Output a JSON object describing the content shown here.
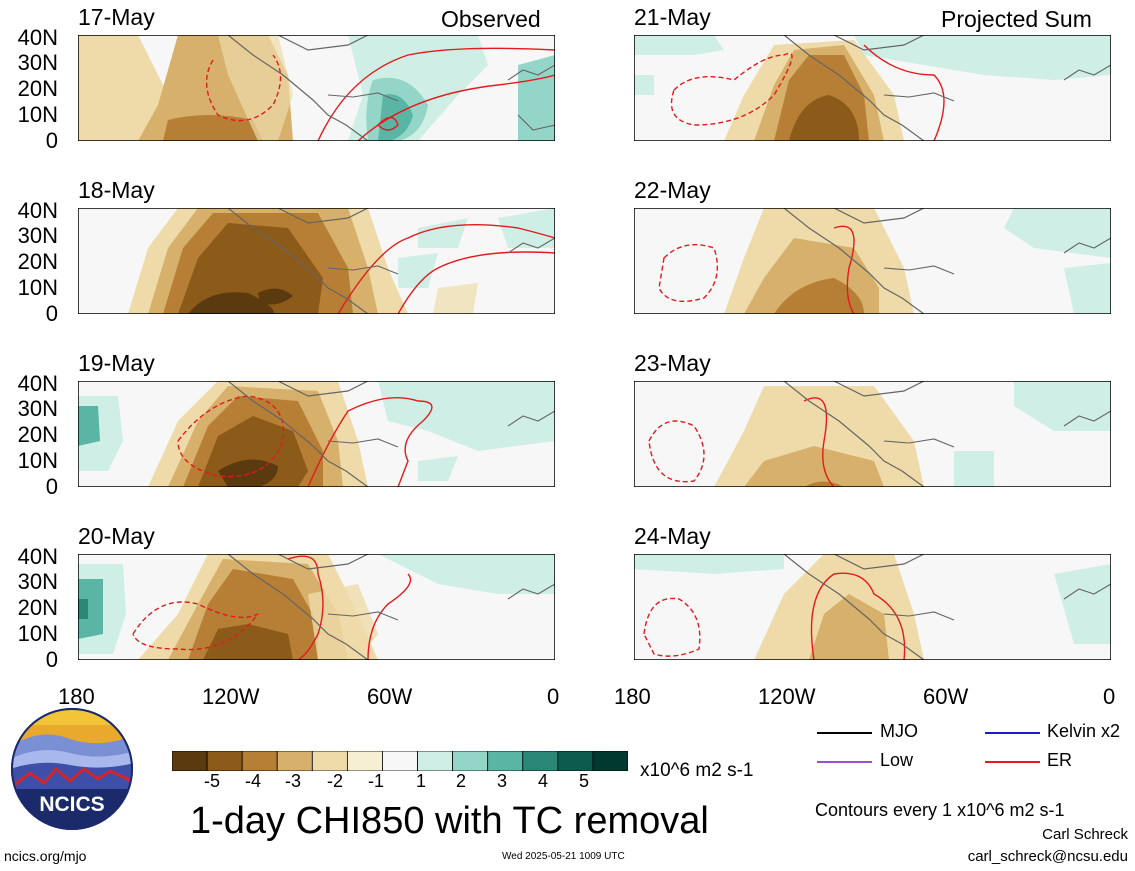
{
  "panels": [
    {
      "date": "17-May",
      "tag": "Observed"
    },
    {
      "date": "18-May",
      "tag": ""
    },
    {
      "date": "19-May",
      "tag": ""
    },
    {
      "date": "20-May",
      "tag": ""
    },
    {
      "date": "21-May",
      "tag": "Projected Sum"
    },
    {
      "date": "22-May",
      "tag": ""
    },
    {
      "date": "23-May",
      "tag": ""
    },
    {
      "date": "24-May",
      "tag": ""
    }
  ],
  "lat_labels": [
    "40N",
    "30N",
    "20N",
    "10N",
    "0"
  ],
  "lon_labels": [
    "180",
    "120W",
    "60W",
    "0"
  ],
  "colorbar": {
    "ticks": [
      "-5",
      "-4",
      "-3",
      "-2",
      "-1",
      "1",
      "2",
      "3",
      "4",
      "5"
    ],
    "colors": [
      "#5b3a10",
      "#8c5a19",
      "#b67f35",
      "#d7b06b",
      "#eedba9",
      "#f6efd4",
      "#f7f7f7",
      "#cfeee6",
      "#93d6c8",
      "#5ab5a4",
      "#2a8677",
      "#0d5a4e",
      "#02392f"
    ],
    "units": "x10^6 m2 s-1"
  },
  "legend": [
    {
      "label": "MJO",
      "color": "#000000"
    },
    {
      "label": "Kelvin x2",
      "color": "#1a1acc"
    },
    {
      "label": "Low",
      "color": "#9a4fd6"
    },
    {
      "label": "ER",
      "color": "#e41a1c"
    }
  ],
  "title": "1-day CHI850 with TC removal",
  "contour_note": "Contours every 1 x10^6 m2 s-1",
  "author": "Carl Schreck",
  "email": "carl_schreck@ncsu.edu",
  "site": "ncics.org/mjo",
  "timestamp": "Wed 2025-05-21 1009 UTC",
  "logo_text": "NCICS"
}
